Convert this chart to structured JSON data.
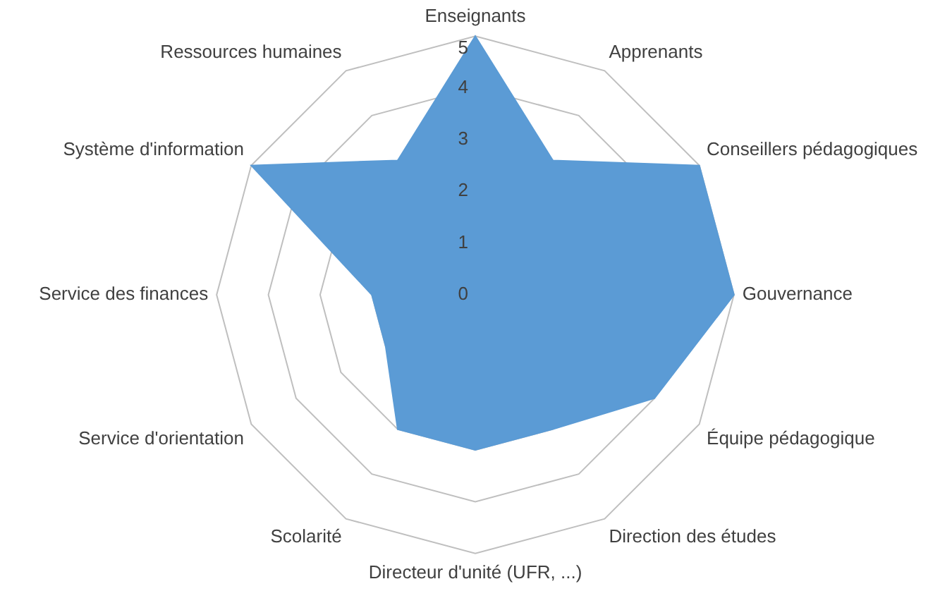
{
  "chart_data": {
    "type": "radar",
    "categories": [
      "Enseignants",
      "Apprenants",
      "Conseillers pédagogiques",
      "Gouvernance",
      "Équipe pédagogique",
      "Direction des études",
      "Directeur d'unité (UFR, ...)",
      "Scolarité",
      "Service d'orientation",
      "Service des finances",
      "Système d'information",
      "Ressources humaines"
    ],
    "series": [
      {
        "color": "#5b9bd5",
        "values": [
          5,
          3,
          5,
          5,
          4,
          3,
          3,
          3,
          2,
          2,
          5,
          3
        ]
      }
    ],
    "ylim": [
      0,
      5
    ],
    "yticks": [
      0,
      1,
      2,
      3,
      4,
      5
    ],
    "grid": true,
    "legend": false
  }
}
